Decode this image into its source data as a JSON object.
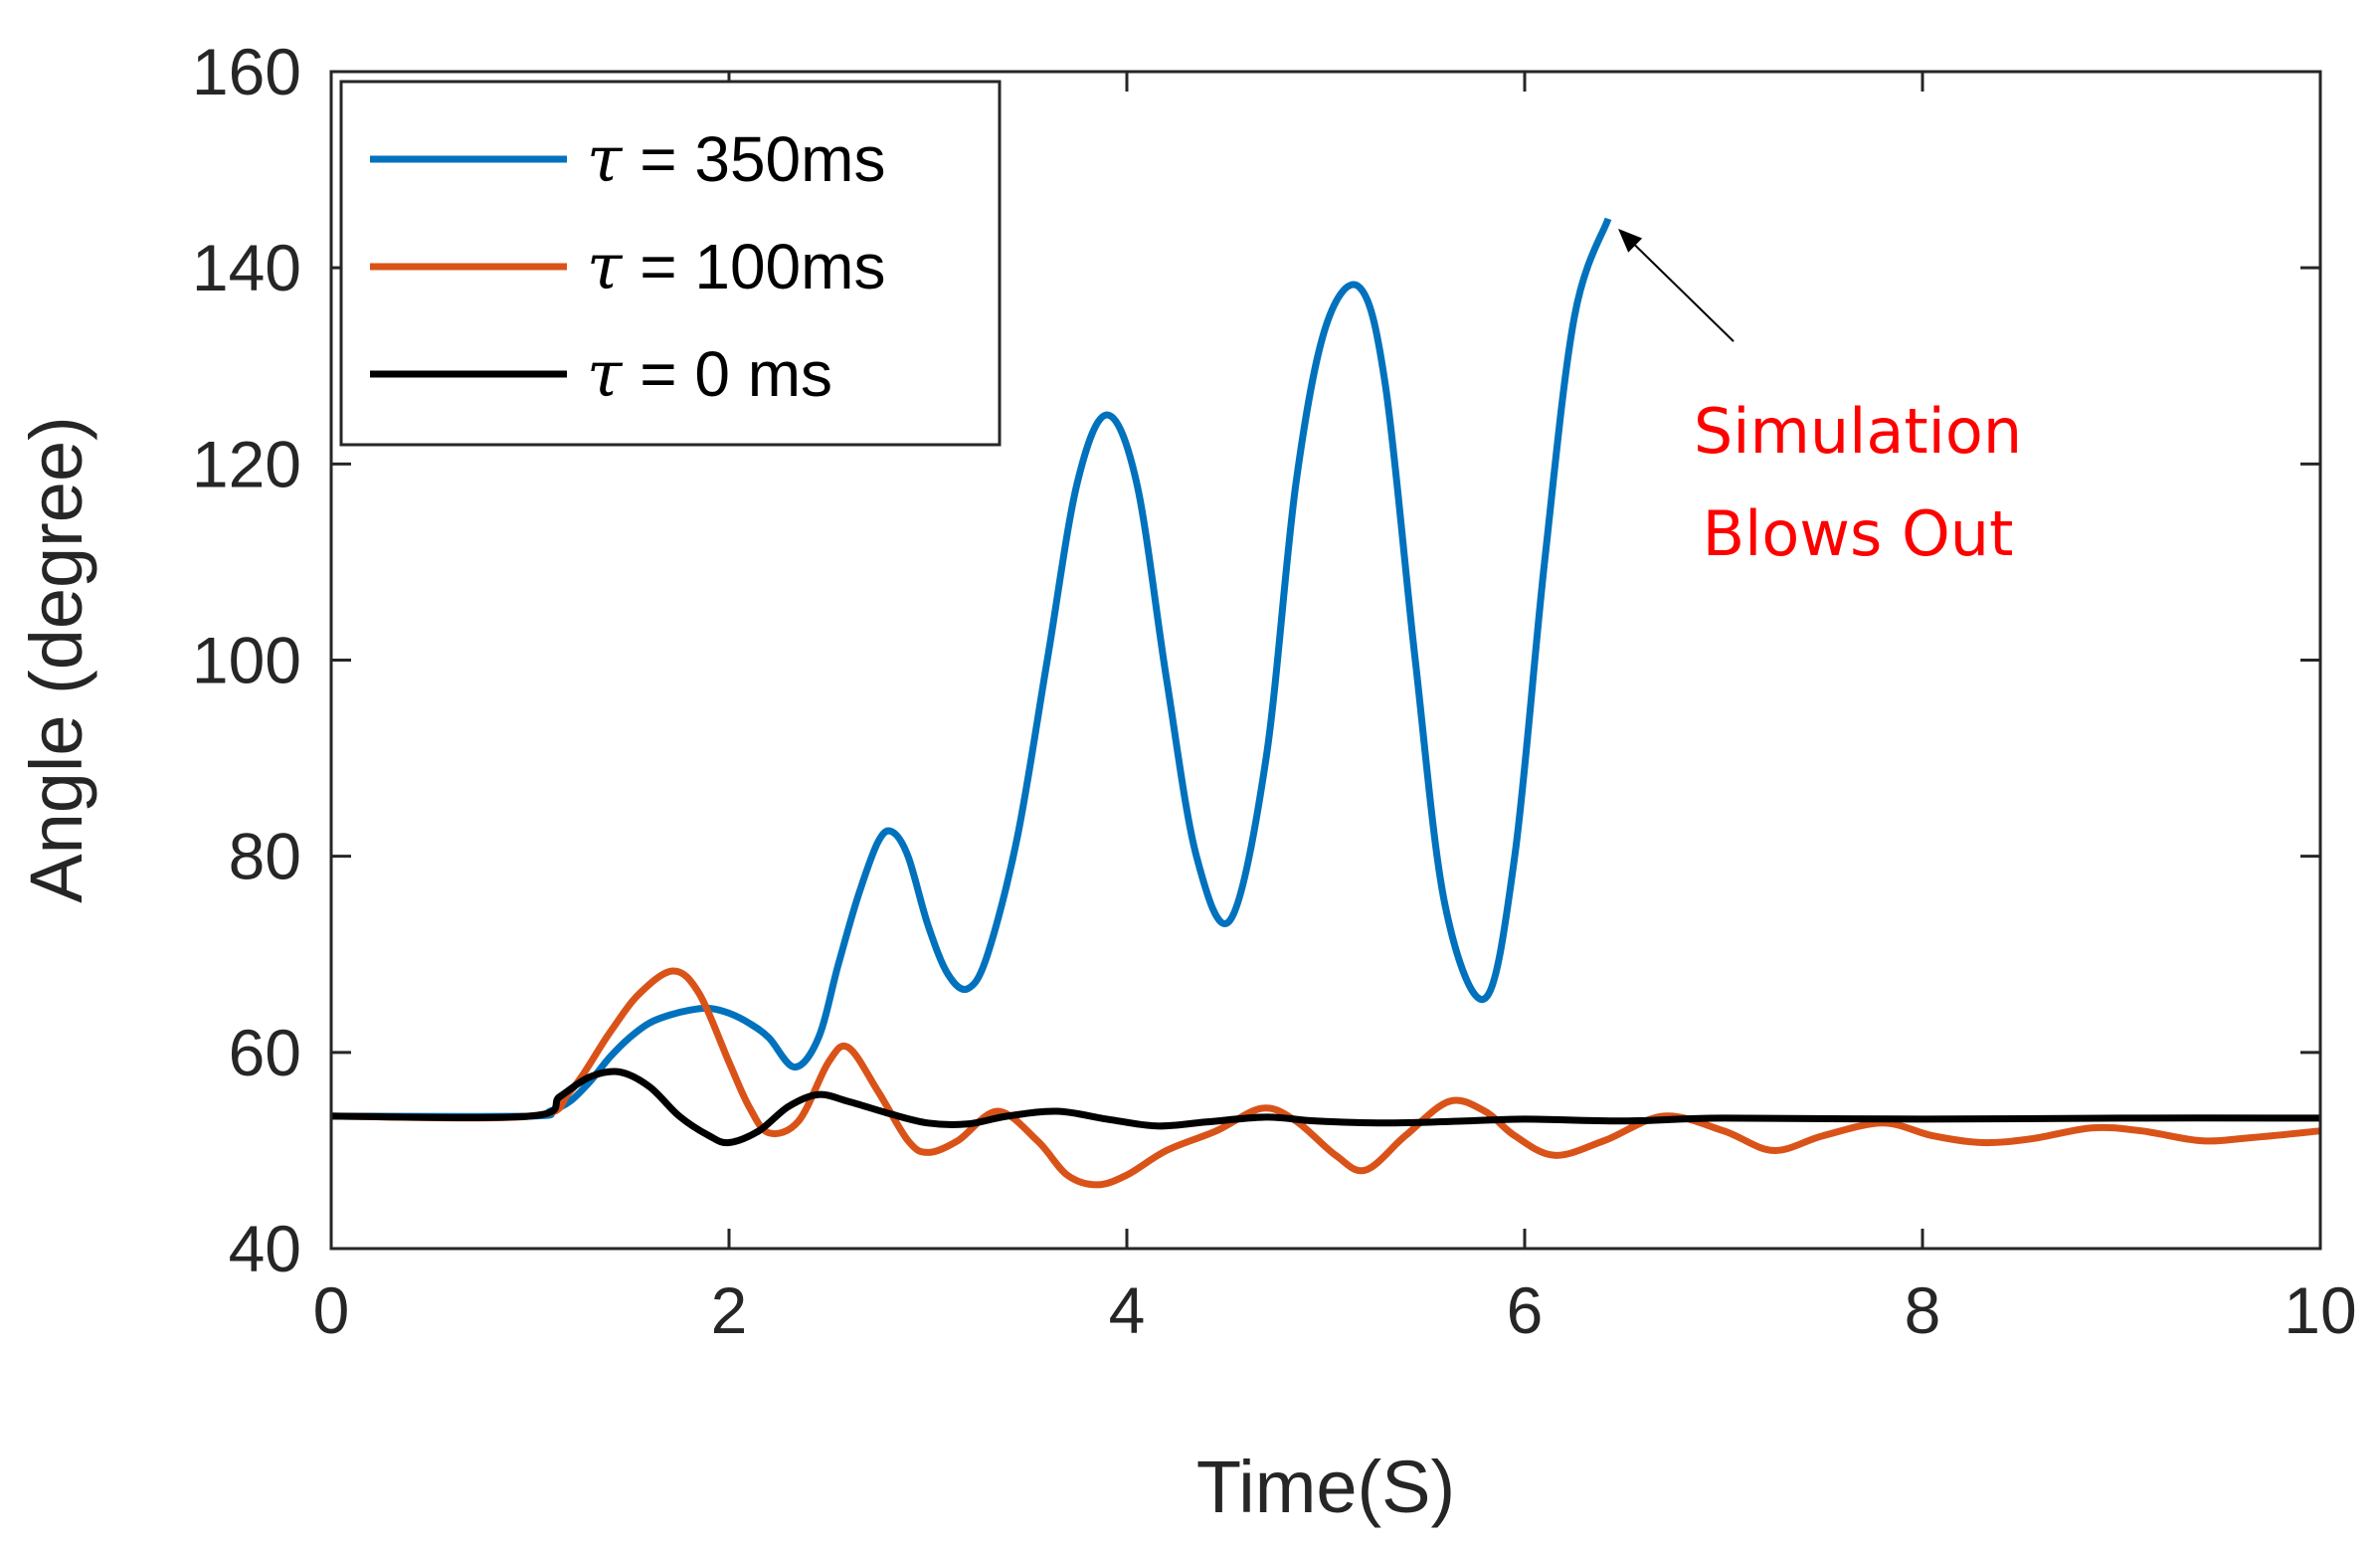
{
  "chart_data": {
    "type": "line",
    "title": "",
    "xlabel": "Time(S)",
    "ylabel": "Angle (degree)",
    "xlim": [
      0,
      10
    ],
    "ylim": [
      40,
      160
    ],
    "xticks": [
      0,
      2,
      4,
      6,
      8,
      10
    ],
    "yticks": [
      40,
      60,
      80,
      100,
      120,
      140,
      160
    ],
    "grid": false,
    "legend_position": "top-left",
    "series": [
      {
        "name": "τ = 350ms",
        "legend_tau": "τ",
        "legend_rest": " = 350ms",
        "color": "#0072BD",
        "x": [
          0,
          1.0,
          1.1,
          1.2,
          1.3,
          1.4,
          1.5,
          1.6,
          1.7,
          1.8,
          1.9,
          2.0,
          2.1,
          2.2,
          2.33,
          2.45,
          2.55,
          2.65,
          2.75,
          2.82,
          2.9,
          3.0,
          3.1,
          3.2,
          3.3,
          3.45,
          3.6,
          3.75,
          3.9,
          4.05,
          4.2,
          4.35,
          4.52,
          4.7,
          4.85,
          5.0,
          5.17,
          5.3,
          5.45,
          5.6,
          5.8,
          5.95,
          6.1,
          6.25,
          6.42
        ],
        "values": [
          53.5,
          53.5,
          54,
          55,
          57,
          59.5,
          61.5,
          63,
          63.8,
          64.3,
          64.5,
          64,
          63,
          61.5,
          58.5,
          61.5,
          69,
          76,
          81.5,
          82.5,
          80,
          73,
          68,
          66.5,
          70,
          82,
          100,
          118,
          125,
          118,
          98,
          80,
          73.5,
          90,
          118,
          134,
          138,
          128,
          100,
          75,
          65.5,
          80,
          110,
          135,
          145
        ]
      },
      {
        "name": "τ = 100ms",
        "legend_tau": "τ",
        "legend_rest": " = 100ms",
        "color": "#D95319",
        "x": [
          0,
          1.0,
          1.2,
          1.4,
          1.55,
          1.72,
          1.85,
          2.0,
          2.1,
          2.2,
          2.35,
          2.5,
          2.6,
          2.75,
          2.9,
          3.0,
          3.15,
          3.35,
          3.55,
          3.7,
          3.85,
          4.0,
          4.2,
          4.45,
          4.68,
          4.85,
          5.05,
          5.2,
          5.4,
          5.62,
          5.8,
          5.95,
          6.15,
          6.4,
          6.7,
          7.0,
          7.25,
          7.5,
          7.8,
          8.05,
          8.3,
          8.55,
          8.85,
          9.1,
          9.4,
          9.65,
          10.0
        ],
        "values": [
          53.5,
          53.5,
          56,
          62,
          66,
          68.3,
          66,
          59,
          54.5,
          51.8,
          53,
          59,
          60.5,
          56,
          51,
          49.8,
          51,
          54,
          51,
          47.5,
          46.5,
          47.5,
          50,
          52,
          54.3,
          53,
          49.5,
          48,
          51.5,
          55,
          54,
          51.5,
          49.5,
          51,
          53.5,
          52,
          50,
          51.5,
          52.8,
          51.5,
          50.8,
          51.2,
          52.3,
          52,
          51,
          51.3,
          52
        ]
      },
      {
        "name": "τ = 0 ms",
        "legend_tau": "τ",
        "legend_rest": " = 0 ms",
        "color": "#000000",
        "x": [
          0,
          1.0,
          1.15,
          1.3,
          1.45,
          1.6,
          1.75,
          1.9,
          2.0,
          2.15,
          2.3,
          2.45,
          2.6,
          2.8,
          3.0,
          3.2,
          3.4,
          3.65,
          3.9,
          4.15,
          4.4,
          4.7,
          4.95,
          5.3,
          5.7,
          6.0,
          6.5,
          7.0,
          8.0,
          9.0,
          10.0
        ],
        "values": [
          53.5,
          53.5,
          55.5,
          57.5,
          58,
          56.5,
          53.5,
          51.5,
          50.8,
          52,
          54.5,
          55.7,
          55,
          53.8,
          52.8,
          52.7,
          53.5,
          54,
          53.2,
          52.5,
          52.9,
          53.4,
          53,
          52.8,
          53,
          53.2,
          53,
          53.3,
          53.2,
          53.3,
          53.3
        ]
      }
    ],
    "annotations": [
      {
        "line1": "Simulation",
        "line2": "Blows Out",
        "color": "#FF0000",
        "arrow_from": [
          7.05,
          132.5
        ],
        "arrow_to": [
          6.42,
          145
        ]
      }
    ]
  }
}
